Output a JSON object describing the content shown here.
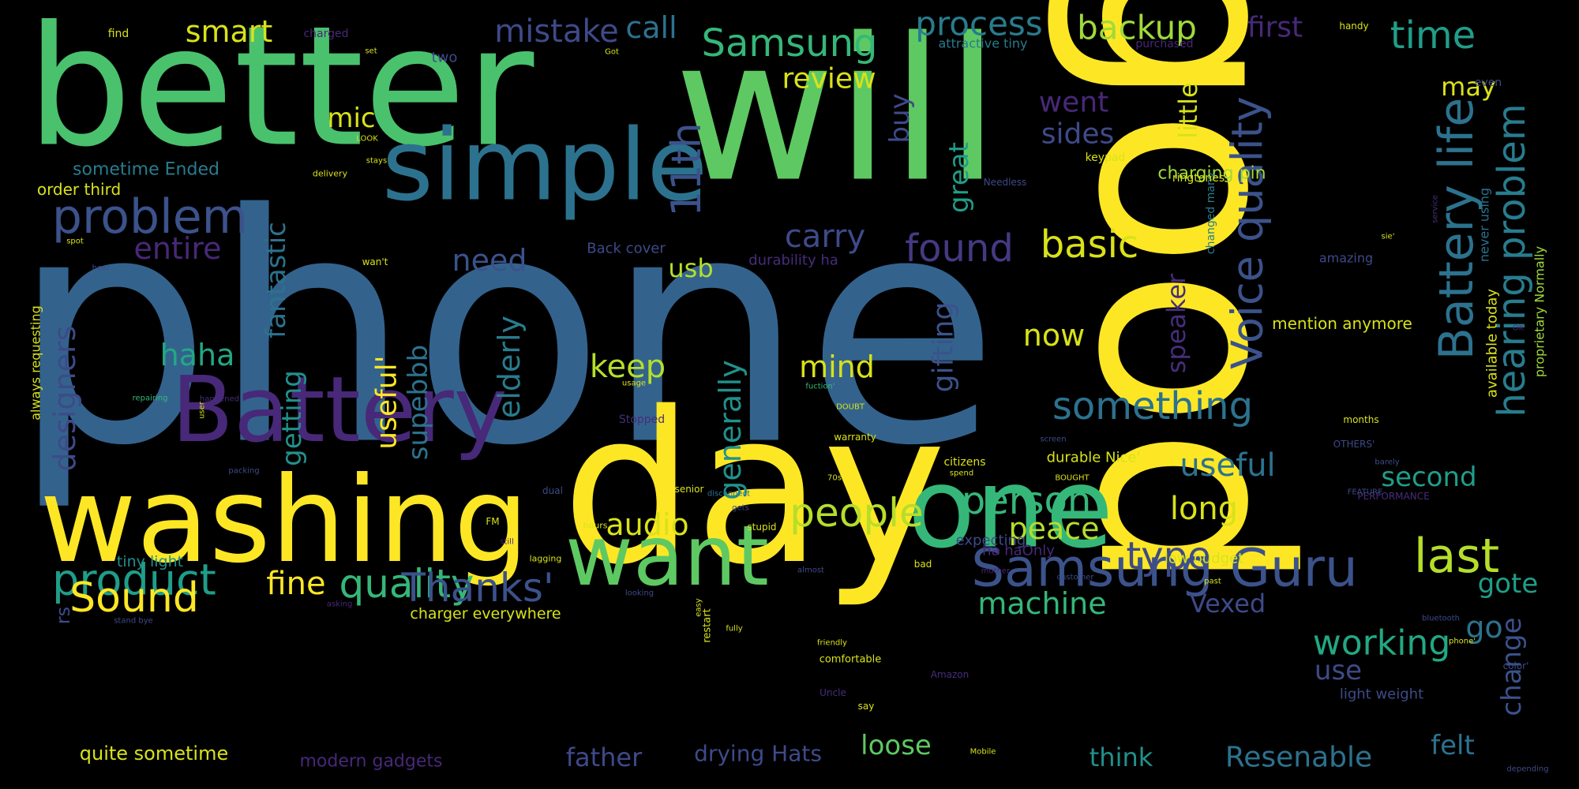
{
  "word_cloud": {
    "words": [
      {
        "text": "phone",
        "color": "#33638d"
      },
      {
        "text": "good",
        "color": "#fde725"
      },
      {
        "text": "will",
        "color": "#5ec962"
      },
      {
        "text": "better",
        "color": "#4ac16d"
      },
      {
        "text": "day",
        "color": "#fde725"
      },
      {
        "text": "washing",
        "color": "#fde725"
      },
      {
        "text": "one",
        "color": "#35b779"
      },
      {
        "text": "simple",
        "color": "#2c728e"
      },
      {
        "text": "Battery",
        "color": "#482878"
      },
      {
        "text": "want",
        "color": "#5ec962"
      },
      {
        "text": "Samsung Guru",
        "color": "#3b528b"
      },
      {
        "text": "Battery life",
        "color": "#2c728e"
      },
      {
        "text": "hearing problem",
        "color": "#287c8e"
      },
      {
        "text": "Voice quality",
        "color": "#3b528b"
      },
      {
        "text": "problem",
        "color": "#3b528b"
      },
      {
        "text": "Samsung",
        "color": "#35b779"
      },
      {
        "text": "product",
        "color": "#1f9e89"
      },
      {
        "text": "quality",
        "color": "#35b779"
      },
      {
        "text": "last",
        "color": "#b5de2b"
      },
      {
        "text": "found",
        "color": "#443a83"
      },
      {
        "text": "basic",
        "color": "#d8e219"
      },
      {
        "text": "people",
        "color": "#b5de2b"
      },
      {
        "text": "person",
        "color": "#35b779"
      },
      {
        "text": "something",
        "color": "#2c728e"
      },
      {
        "text": "Thanks'",
        "color": "#3b528b"
      },
      {
        "text": "Sound",
        "color": "#fde725"
      },
      {
        "text": "working",
        "color": "#22a884"
      },
      {
        "text": "11th",
        "color": "#3b528b"
      },
      {
        "text": "type",
        "color": "#3e4a89"
      },
      {
        "text": "process",
        "color": "#287c8e"
      },
      {
        "text": "backup",
        "color": "#a0da39"
      },
      {
        "text": "time",
        "color": "#1f9e89"
      },
      {
        "text": "Resenable",
        "color": "#2c728e"
      },
      {
        "text": "machine",
        "color": "#35b779"
      },
      {
        "text": "long",
        "color": "#d8e219"
      },
      {
        "text": "peace",
        "color": "#b5de2b"
      },
      {
        "text": "useful",
        "color": "#2c728e"
      },
      {
        "text": "audio",
        "color": "#d8e219"
      },
      {
        "text": "fine",
        "color": "#fde725"
      },
      {
        "text": "carry",
        "color": "#3e4a89"
      },
      {
        "text": "need",
        "color": "#3b528b"
      },
      {
        "text": "keep",
        "color": "#b5de2b"
      },
      {
        "text": "mind",
        "color": "#d8e219"
      },
      {
        "text": "now",
        "color": "#d8e219"
      },
      {
        "text": "haha",
        "color": "#22a884"
      },
      {
        "text": "entire",
        "color": "#482878"
      },
      {
        "text": "designers",
        "color": "#3e4a89"
      },
      {
        "text": "fantastic",
        "color": "#2c728e"
      },
      {
        "text": "elderly",
        "color": "#287c8e"
      },
      {
        "text": "generally",
        "color": "#21918c"
      },
      {
        "text": "useful'",
        "color": "#fde725"
      },
      {
        "text": "supebbb",
        "color": "#2c728e"
      },
      {
        "text": "getting",
        "color": "#21918c"
      },
      {
        "text": "gifting",
        "color": "#3b528b"
      },
      {
        "text": "great",
        "color": "#1f9e89"
      },
      {
        "text": "buy",
        "color": "#3e4a89"
      },
      {
        "text": "mistake",
        "color": "#3e4a89"
      },
      {
        "text": "call",
        "color": "#2c728e"
      },
      {
        "text": "smart",
        "color": "#d8e219"
      },
      {
        "text": "review",
        "color": "#d8e219"
      },
      {
        "text": "mic",
        "color": "#d8e219"
      },
      {
        "text": "sides",
        "color": "#3e4a89"
      },
      {
        "text": "went",
        "color": "#482878"
      },
      {
        "text": "first",
        "color": "#482878"
      },
      {
        "text": "may",
        "color": "#d8e219"
      },
      {
        "text": "usb",
        "color": "#b5de2b"
      },
      {
        "text": "little",
        "color": "#d8e219"
      },
      {
        "text": "speaker",
        "color": "#472d7b"
      },
      {
        "text": "second",
        "color": "#1f9e89"
      },
      {
        "text": "gote",
        "color": "#1f9e89"
      },
      {
        "text": "go",
        "color": "#2c728e"
      },
      {
        "text": "use",
        "color": "#3e4a89"
      },
      {
        "text": "change",
        "color": "#3b528b"
      },
      {
        "text": "felt",
        "color": "#2c728e"
      },
      {
        "text": "think",
        "color": "#21918c"
      },
      {
        "text": "loose",
        "color": "#5ec962"
      },
      {
        "text": "father",
        "color": "#3e4a89"
      },
      {
        "text": "Vexed",
        "color": "#3e4a89"
      },
      {
        "text": "drying Hats",
        "color": "#3e4a89"
      },
      {
        "text": "quite sometime",
        "color": "#d8e219"
      },
      {
        "text": "rs",
        "color": "#3e4a89"
      },
      {
        "text": "modern gadgets",
        "color": "#482878"
      },
      {
        "text": "charging pin",
        "color": "#a0da39"
      },
      {
        "text": "sometime Ended",
        "color": "#287c8e"
      },
      {
        "text": "order third",
        "color": "#d8e219"
      },
      {
        "text": "mention anymore",
        "color": "#d8e219"
      },
      {
        "text": "available today",
        "color": "#d8e219"
      },
      {
        "text": "proprietary Normally",
        "color": "#a0da39"
      },
      {
        "text": "durability ha",
        "color": "#472d7b"
      },
      {
        "text": "Back cover",
        "color": "#3e4a89"
      },
      {
        "text": "tiny light",
        "color": "#21918c"
      },
      {
        "text": "charger everywhere",
        "color": "#d8e219"
      },
      {
        "text": "always requesting",
        "color": "#d8e219"
      },
      {
        "text": "attractive tiny",
        "color": "#287c8e"
      },
      {
        "text": "purchased",
        "color": "#482878"
      },
      {
        "text": "amazing",
        "color": "#3e4a89"
      },
      {
        "text": "never using",
        "color": "#2c728e"
      },
      {
        "text": "even",
        "color": "#3e4a89"
      },
      {
        "text": "light weight",
        "color": "#3e4a89"
      },
      {
        "text": "low budget",
        "color": "#d8e219"
      },
      {
        "text": "ha haOnly",
        "color": "#482878"
      },
      {
        "text": "durable Nice'",
        "color": "#d8e219"
      },
      {
        "text": "expecting",
        "color": "#3e4a89"
      },
      {
        "text": "changed many",
        "color": "#287c8e"
      },
      {
        "text": "ringtones",
        "color": "#d8e219"
      },
      {
        "text": "keypad",
        "color": "#d8e219"
      },
      {
        "text": "find",
        "color": "#d8e219"
      },
      {
        "text": "charged",
        "color": "#482878"
      },
      {
        "text": "set",
        "color": "#d8e219"
      },
      {
        "text": "Got",
        "color": "#d8e219"
      },
      {
        "text": "two",
        "color": "#3e4a89"
      },
      {
        "text": "handy",
        "color": "#d8e219"
      },
      {
        "text": "LOOK",
        "color": "#d8e219"
      },
      {
        "text": "stays",
        "color": "#d8e219"
      },
      {
        "text": "delivery",
        "color": "#d8e219"
      },
      {
        "text": "Needless",
        "color": "#3e4a89"
      },
      {
        "text": "spot",
        "color": "#d8e219"
      },
      {
        "text": "hear",
        "color": "#3e4a89"
      },
      {
        "text": "wan't",
        "color": "#d8e219"
      },
      {
        "text": "repairing",
        "color": "#35b779"
      },
      {
        "text": "user",
        "color": "#d8e219"
      },
      {
        "text": "happened",
        "color": "#472d7b"
      },
      {
        "text": "usage",
        "color": "#d8e219"
      },
      {
        "text": "Stopped",
        "color": "#472d7b"
      },
      {
        "text": "fuction'",
        "color": "#35b779"
      },
      {
        "text": "DOUBT",
        "color": "#d8e219"
      },
      {
        "text": "warranty",
        "color": "#d8e219"
      },
      {
        "text": "citizens",
        "color": "#d8e219"
      },
      {
        "text": "spend",
        "color": "#d8e219"
      },
      {
        "text": "screen",
        "color": "#3e4a89"
      },
      {
        "text": "70s",
        "color": "#d8e219"
      },
      {
        "text": "packing",
        "color": "#3e4a89"
      },
      {
        "text": "dual",
        "color": "#3e4a89"
      },
      {
        "text": "senior",
        "color": "#d8e219"
      },
      {
        "text": "disconnect",
        "color": "#2c728e"
      },
      {
        "text": "gets",
        "color": "#3e4a89"
      },
      {
        "text": "FM",
        "color": "#d8e219"
      },
      {
        "text": "hours",
        "color": "#d8e219"
      },
      {
        "text": "BOUGHT",
        "color": "#d8e219"
      },
      {
        "text": "PERFORMANCE",
        "color": "#472d7b"
      },
      {
        "text": "FEATURE",
        "color": "#3e4a89"
      },
      {
        "text": "still",
        "color": "#482878"
      },
      {
        "text": "lagging",
        "color": "#d8e219"
      },
      {
        "text": "stupid",
        "color": "#d8e219"
      },
      {
        "text": "bad",
        "color": "#d8e219"
      },
      {
        "text": "almost",
        "color": "#3e4a89"
      },
      {
        "text": "fully",
        "color": "#d8e219"
      },
      {
        "text": "mother",
        "color": "#482878"
      },
      {
        "text": "customer",
        "color": "#3e4a89"
      },
      {
        "text": "past",
        "color": "#d8e219"
      },
      {
        "text": "asking",
        "color": "#482878"
      },
      {
        "text": "stand bye",
        "color": "#3e4a89"
      },
      {
        "text": "looking",
        "color": "#3e4a89"
      },
      {
        "text": "easy",
        "color": "#d8e219"
      },
      {
        "text": "restart",
        "color": "#d8e219"
      },
      {
        "text": "friendly",
        "color": "#d8e219"
      },
      {
        "text": "comfortable",
        "color": "#d8e219"
      },
      {
        "text": "Uncle",
        "color": "#472d7b"
      },
      {
        "text": "Amazon",
        "color": "#472d7b"
      },
      {
        "text": "say",
        "color": "#d8e219"
      },
      {
        "text": "Mobile",
        "color": "#d8e219"
      },
      {
        "text": "bluetooth",
        "color": "#3e4a89"
      },
      {
        "text": "phone'",
        "color": "#d8e219"
      },
      {
        "text": "color'",
        "color": "#3e4a89"
      },
      {
        "text": "depending",
        "color": "#3e4a89"
      },
      {
        "text": "months",
        "color": "#d8e219"
      },
      {
        "text": "OTHERS'",
        "color": "#3e4a89"
      },
      {
        "text": "barely",
        "color": "#3e4a89"
      },
      {
        "text": "sie'",
        "color": "#d8e219"
      },
      {
        "text": "OK",
        "color": "#482878"
      },
      {
        "text": "service",
        "color": "#472d7b"
      }
    ]
  }
}
